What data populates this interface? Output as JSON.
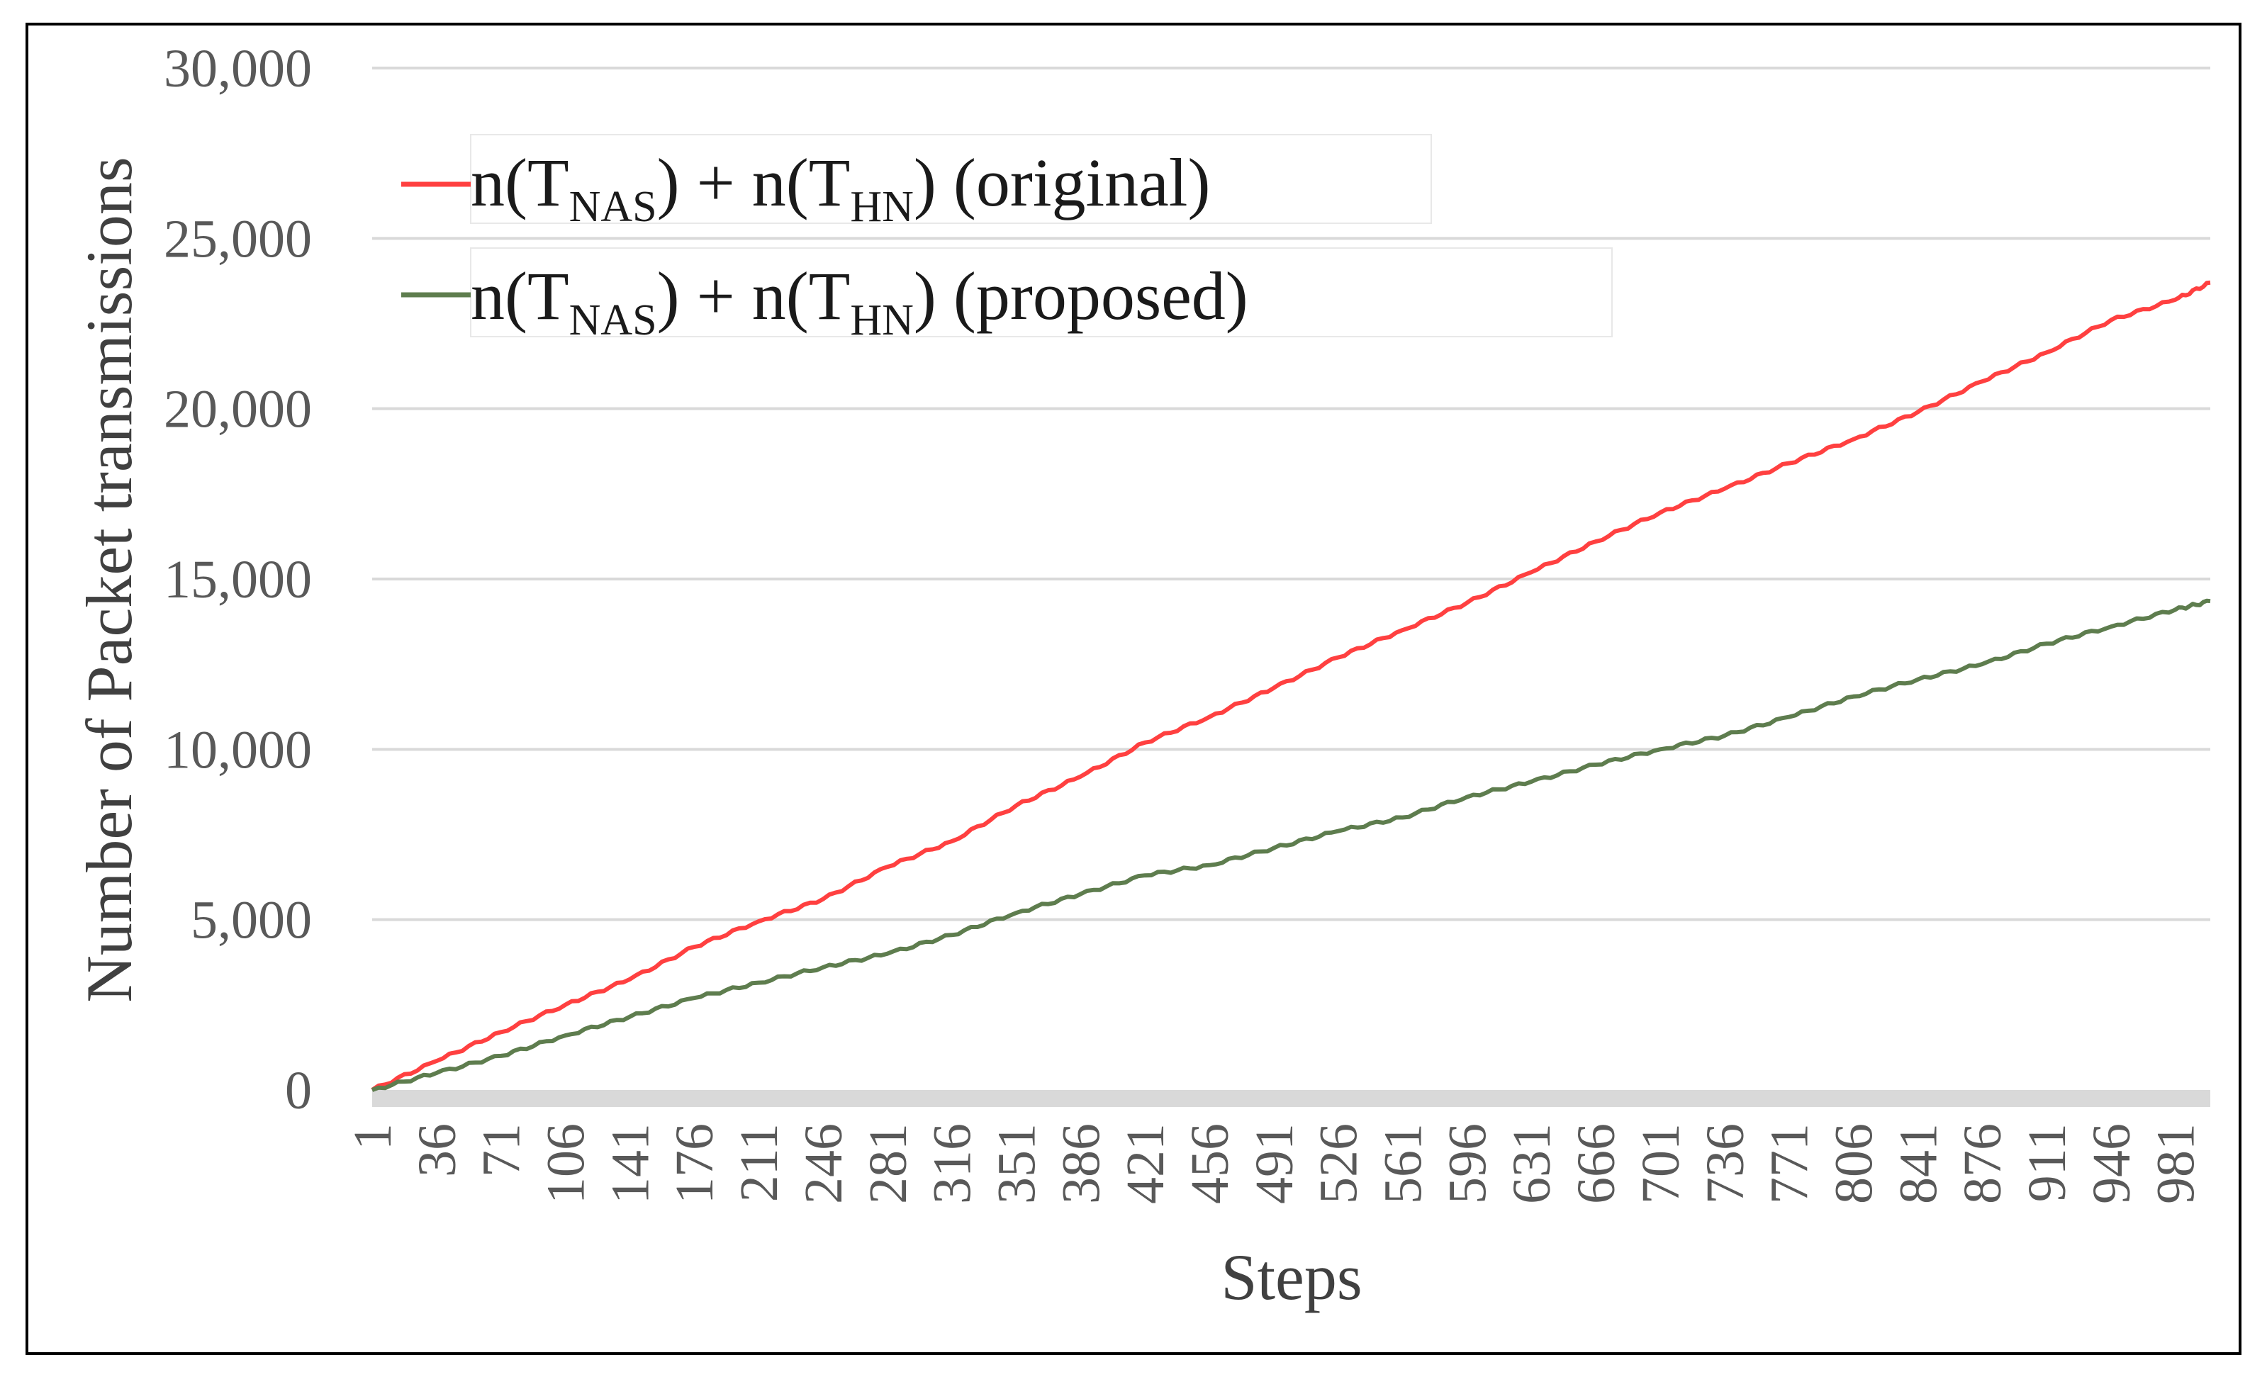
{
  "chart_data": {
    "type": "line",
    "title": "",
    "xlabel": "Steps",
    "ylabel": "Number of Packet transmissions",
    "x_range": [
      1,
      1000
    ],
    "x_tick_labels": [
      "1",
      "36",
      "71",
      "106",
      "141",
      "176",
      "211",
      "246",
      "281",
      "316",
      "351",
      "386",
      "421",
      "456",
      "491",
      "526",
      "561",
      "596",
      "631",
      "666",
      "701",
      "736",
      "771",
      "806",
      "841",
      "876",
      "911",
      "946",
      "981"
    ],
    "ylim": [
      0,
      30000
    ],
    "y_ticks": [
      0,
      5000,
      10000,
      15000,
      20000,
      25000,
      30000
    ],
    "y_tick_labels": [
      "0",
      "5,000",
      "10,000",
      "15,000",
      "20,000",
      "25,000",
      "30,000"
    ],
    "grid": "horizontal",
    "legend_position": "top-left",
    "series": [
      {
        "name": "n(TNAS) + n(THN)  (original)",
        "legend": {
          "pre1": "n(T",
          "sub1": "NAS",
          "mid": ") + n(T",
          "sub2": "HN",
          "post": ")  (original)"
        },
        "color": "#ff4040",
        "x": [
          1,
          36,
          71,
          106,
          141,
          176,
          211,
          246,
          281,
          316,
          351,
          386,
          421,
          456,
          491,
          526,
          561,
          596,
          631,
          666,
          701,
          736,
          771,
          806,
          841,
          876,
          911,
          946,
          981,
          1000
        ],
        "values": [
          0,
          850,
          1700,
          2500,
          3250,
          4200,
          4950,
          5600,
          6550,
          7300,
          8350,
          9200,
          10200,
          10950,
          11800,
          12700,
          13500,
          14300,
          15200,
          16100,
          16950,
          17650,
          18400,
          19100,
          19900,
          20800,
          21650,
          22600,
          23200,
          23700
        ]
      },
      {
        "name": "n(TNAS) + n(THN)  (proposed)",
        "legend": {
          "pre1": "n(T",
          "sub1": "NAS",
          "mid": ") + n(T",
          "sub2": "HN",
          "post": ")  (proposed)"
        },
        "color": "#5e7d4e",
        "x": [
          1,
          36,
          71,
          106,
          141,
          176,
          211,
          246,
          281,
          316,
          351,
          386,
          421,
          456,
          491,
          526,
          561,
          596,
          631,
          666,
          701,
          736,
          771,
          806,
          841,
          876,
          911,
          946,
          981,
          1000
        ],
        "values": [
          0,
          500,
          1000,
          1600,
          2150,
          2700,
          3150,
          3600,
          4000,
          4550,
          5200,
          5750,
          6300,
          6600,
          7100,
          7600,
          8000,
          8600,
          9050,
          9550,
          10000,
          10400,
          10950,
          11550,
          12050,
          12500,
          13100,
          13600,
          14100,
          14350
        ]
      }
    ]
  }
}
